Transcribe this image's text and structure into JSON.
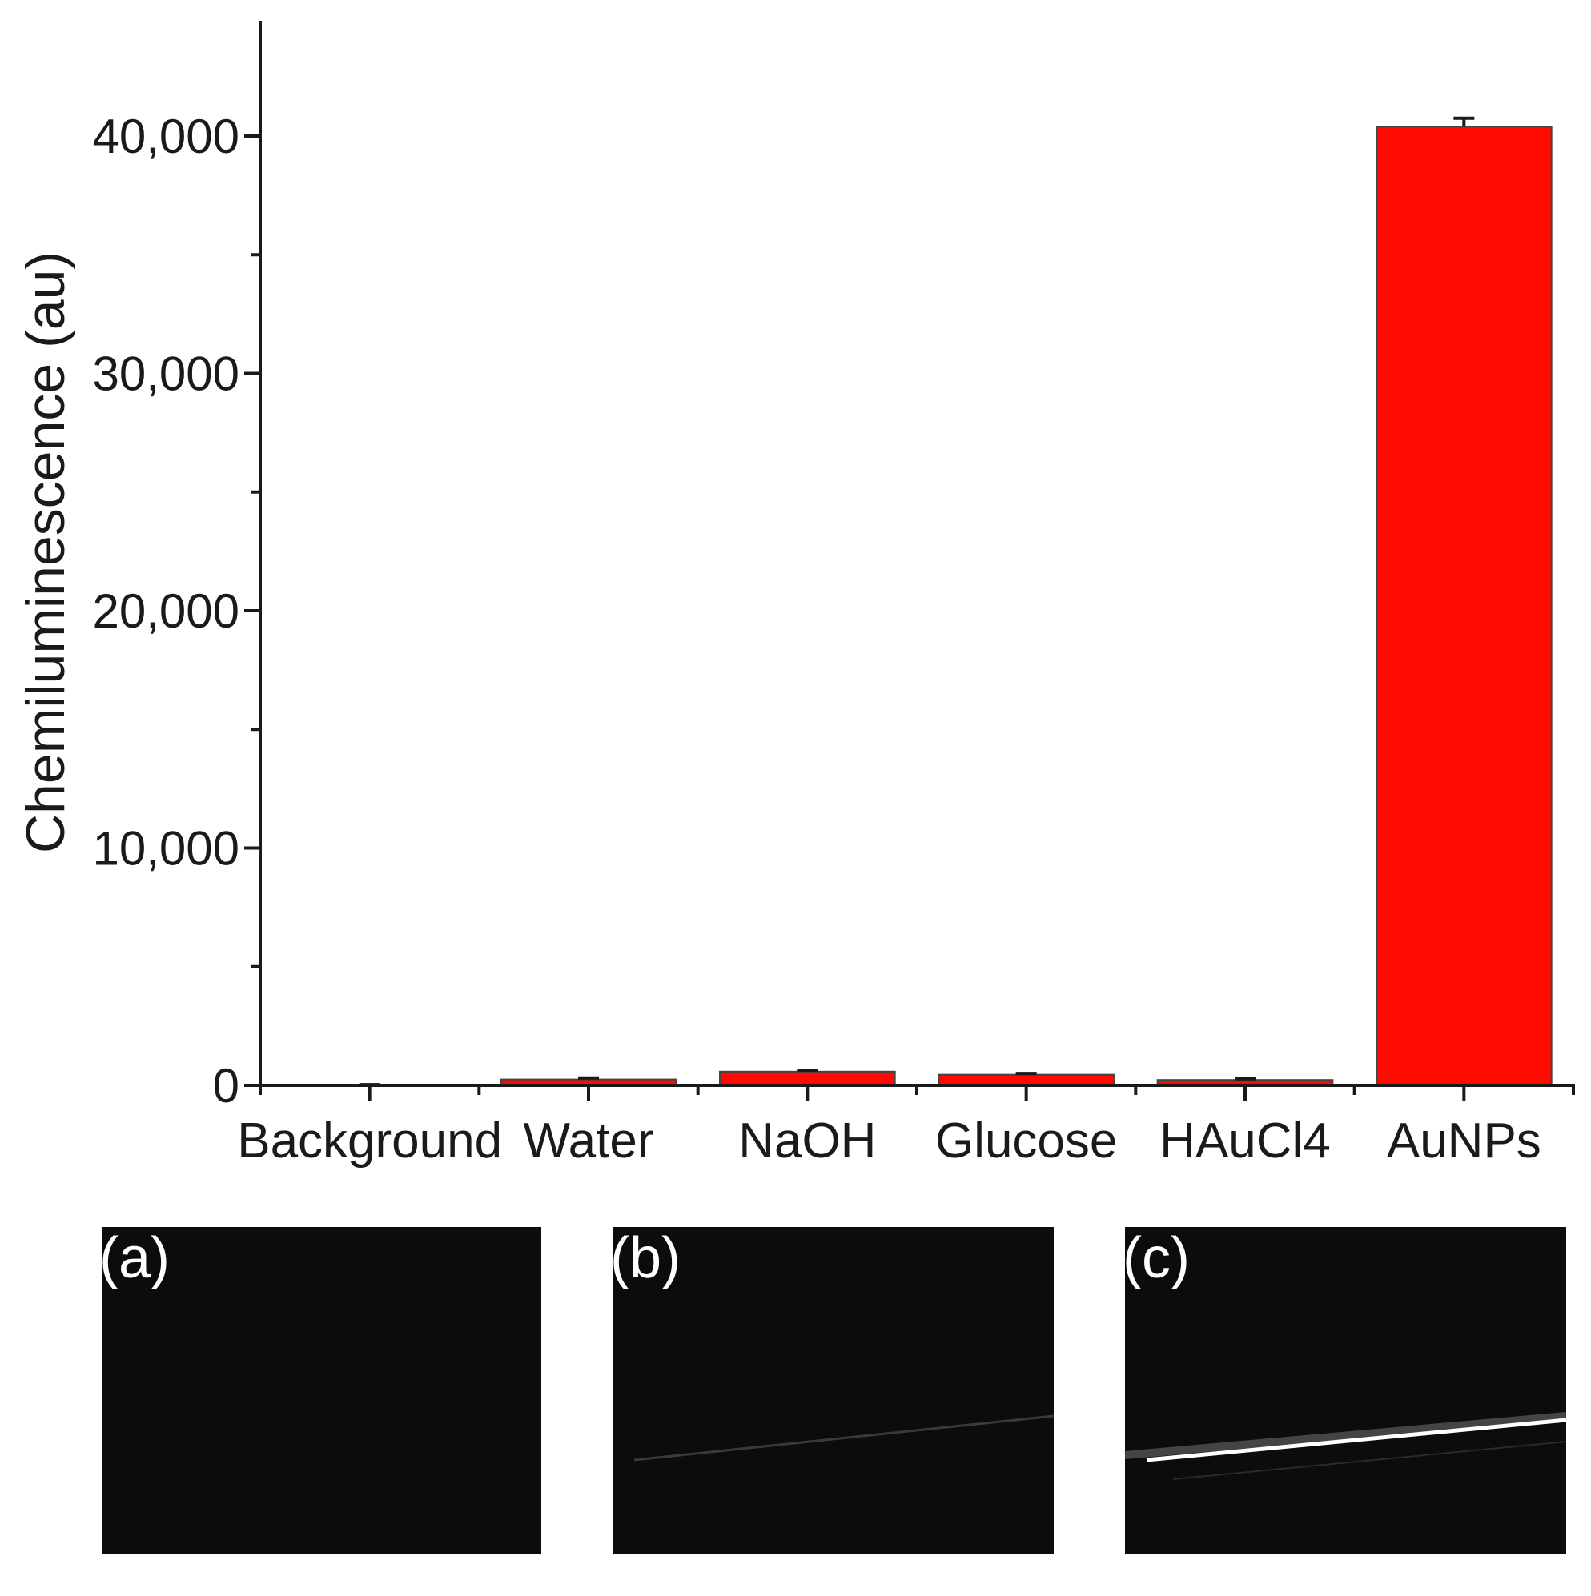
{
  "chart_data": {
    "type": "bar",
    "ylabel": "Chemiluminescence (au)",
    "xlabel": "",
    "categories": [
      "Background",
      "Water",
      "NaOH",
      "Glucose",
      "HAuCl4",
      "AuNPs"
    ],
    "values": [
      0,
      250,
      580,
      450,
      230,
      40400
    ],
    "errors": [
      30,
      60,
      60,
      50,
      50,
      350
    ],
    "ylim": [
      0,
      45000
    ],
    "yticks": [
      0,
      10000,
      20000,
      30000,
      40000
    ],
    "ytick_labels": [
      "0",
      "10,000",
      "20,000",
      "30,000",
      "40,000"
    ],
    "grid": false,
    "bar_color": "#ff0a00",
    "error_bar_color": "#1a1a1a"
  },
  "panels": [
    {
      "label": "(a)",
      "streak": "none"
    },
    {
      "label": "(b)",
      "streak": "faint"
    },
    {
      "label": "(c)",
      "streak": "bright"
    }
  ],
  "colors": {
    "panel_background": "#0c0c0c",
    "streak": "#ffffff"
  }
}
